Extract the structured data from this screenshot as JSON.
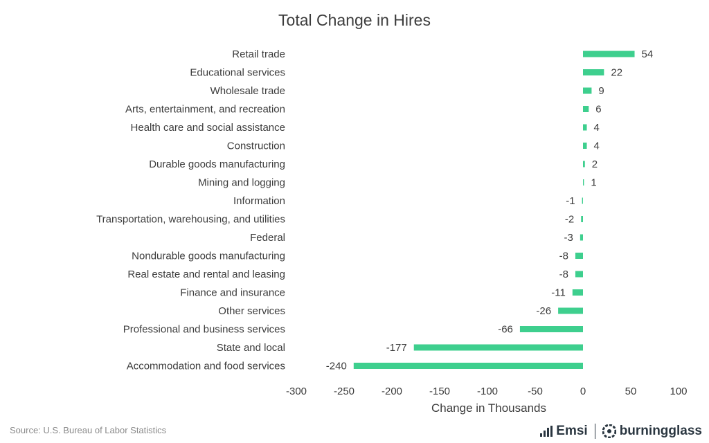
{
  "chart_data": {
    "type": "bar",
    "orientation": "horizontal",
    "title": "Total Change in Hires",
    "xlabel": "Change in Thousands",
    "ylabel": "",
    "xlim": [
      -300,
      100
    ],
    "xticks": [
      -300,
      -250,
      -200,
      -150,
      -100,
      -50,
      0,
      50,
      100
    ],
    "grid": false,
    "bar_color": "#3ecf8e",
    "categories": [
      "Retail trade",
      "Educational services",
      "Wholesale trade",
      "Arts, entertainment, and recreation",
      "Health care and social assistance",
      "Construction",
      "Durable goods manufacturing",
      "Mining and logging",
      "Information",
      "Transportation, warehousing, and utilities",
      "Federal",
      "Nondurable goods manufacturing",
      "Real estate and rental and leasing",
      "Finance and insurance",
      "Other services",
      "Professional and business services",
      "State and local",
      "Accommodation and food services"
    ],
    "values": [
      54,
      22,
      9,
      6,
      4,
      4,
      2,
      1,
      -1,
      -2,
      -3,
      -8,
      -8,
      -11,
      -26,
      -66,
      -177,
      -240
    ]
  },
  "footer": {
    "source": "Source:  U.S. Bureau of Labor Statistics",
    "logo_left": "Emsi",
    "logo_right": "burningglass"
  }
}
